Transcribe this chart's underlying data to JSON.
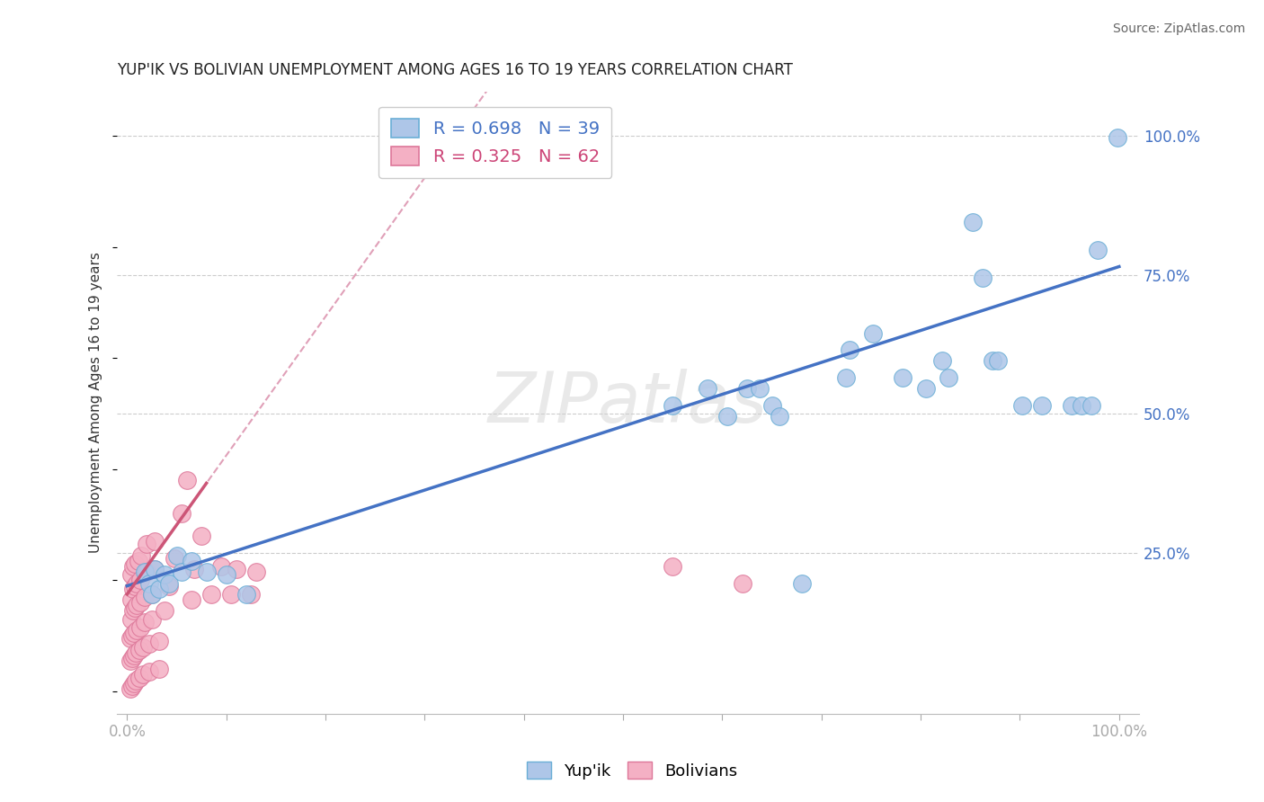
{
  "title": "YUP'IK VS BOLIVIAN UNEMPLOYMENT AMONG AGES 16 TO 19 YEARS CORRELATION CHART",
  "source": "Source: ZipAtlas.com",
  "ylabel": "Unemployment Among Ages 16 to 19 years",
  "xlim": [
    -0.01,
    1.02
  ],
  "ylim": [
    -0.04,
    1.08
  ],
  "xtick_positions": [
    0.0,
    0.1,
    0.2,
    0.3,
    0.4,
    0.5,
    0.6,
    0.7,
    0.8,
    0.9,
    1.0
  ],
  "xlabel_shown": [
    "0.0%",
    "",
    "",
    "",
    "",
    "",
    "",
    "",
    "",
    "",
    "100.0%"
  ],
  "ytick_positions": [
    0.25,
    0.5,
    0.75,
    1.0
  ],
  "ytick_labels": [
    "25.0%",
    "50.0%",
    "75.0%",
    "100.0%"
  ],
  "background_color": "#ffffff",
  "grid_color": "#cccccc",
  "watermark": "ZIPatlas",
  "yup_color": "#aec6e8",
  "yup_edge_color": "#6aaed6",
  "bolivian_color": "#f4b0c4",
  "bolivian_edge_color": "#dd7799",
  "trend_yup_color": "#4472c4",
  "trend_bolivian_solid_color": "#cc5577",
  "trend_bolivian_dash_color": "#e0a0b8",
  "yup_points": [
    [
      0.018,
      0.215
    ],
    [
      0.022,
      0.195
    ],
    [
      0.025,
      0.175
    ],
    [
      0.028,
      0.22
    ],
    [
      0.032,
      0.185
    ],
    [
      0.038,
      0.21
    ],
    [
      0.042,
      0.195
    ],
    [
      0.05,
      0.245
    ],
    [
      0.055,
      0.215
    ],
    [
      0.065,
      0.235
    ],
    [
      0.08,
      0.215
    ],
    [
      0.1,
      0.21
    ],
    [
      0.12,
      0.175
    ],
    [
      0.55,
      0.515
    ],
    [
      0.585,
      0.545
    ],
    [
      0.605,
      0.495
    ],
    [
      0.625,
      0.545
    ],
    [
      0.638,
      0.545
    ],
    [
      0.65,
      0.515
    ],
    [
      0.658,
      0.495
    ],
    [
      0.68,
      0.195
    ],
    [
      0.725,
      0.565
    ],
    [
      0.728,
      0.615
    ],
    [
      0.752,
      0.645
    ],
    [
      0.782,
      0.565
    ],
    [
      0.805,
      0.545
    ],
    [
      0.822,
      0.595
    ],
    [
      0.828,
      0.565
    ],
    [
      0.852,
      0.845
    ],
    [
      0.862,
      0.745
    ],
    [
      0.872,
      0.595
    ],
    [
      0.878,
      0.595
    ],
    [
      0.902,
      0.515
    ],
    [
      0.922,
      0.515
    ],
    [
      0.952,
      0.515
    ],
    [
      0.962,
      0.515
    ],
    [
      0.972,
      0.515
    ],
    [
      0.978,
      0.795
    ],
    [
      0.998,
      0.998
    ]
  ],
  "bolivian_points": [
    [
      0.003,
      0.005
    ],
    [
      0.003,
      0.055
    ],
    [
      0.003,
      0.095
    ],
    [
      0.004,
      0.13
    ],
    [
      0.004,
      0.165
    ],
    [
      0.004,
      0.21
    ],
    [
      0.005,
      0.01
    ],
    [
      0.005,
      0.06
    ],
    [
      0.005,
      0.1
    ],
    [
      0.006,
      0.145
    ],
    [
      0.006,
      0.185
    ],
    [
      0.006,
      0.225
    ],
    [
      0.007,
      0.015
    ],
    [
      0.007,
      0.065
    ],
    [
      0.007,
      0.105
    ],
    [
      0.008,
      0.15
    ],
    [
      0.008,
      0.19
    ],
    [
      0.008,
      0.23
    ],
    [
      0.009,
      0.02
    ],
    [
      0.009,
      0.07
    ],
    [
      0.01,
      0.11
    ],
    [
      0.01,
      0.155
    ],
    [
      0.01,
      0.195
    ],
    [
      0.011,
      0.235
    ],
    [
      0.012,
      0.025
    ],
    [
      0.012,
      0.075
    ],
    [
      0.013,
      0.115
    ],
    [
      0.013,
      0.16
    ],
    [
      0.013,
      0.2
    ],
    [
      0.014,
      0.245
    ],
    [
      0.016,
      0.03
    ],
    [
      0.016,
      0.08
    ],
    [
      0.018,
      0.125
    ],
    [
      0.018,
      0.17
    ],
    [
      0.02,
      0.215
    ],
    [
      0.02,
      0.265
    ],
    [
      0.022,
      0.035
    ],
    [
      0.022,
      0.085
    ],
    [
      0.025,
      0.13
    ],
    [
      0.025,
      0.175
    ],
    [
      0.028,
      0.22
    ],
    [
      0.028,
      0.27
    ],
    [
      0.032,
      0.04
    ],
    [
      0.032,
      0.09
    ],
    [
      0.038,
      0.145
    ],
    [
      0.042,
      0.19
    ],
    [
      0.048,
      0.24
    ],
    [
      0.055,
      0.32
    ],
    [
      0.06,
      0.38
    ],
    [
      0.065,
      0.165
    ],
    [
      0.068,
      0.22
    ],
    [
      0.075,
      0.28
    ],
    [
      0.085,
      0.175
    ],
    [
      0.095,
      0.225
    ],
    [
      0.105,
      0.175
    ],
    [
      0.11,
      0.22
    ],
    [
      0.125,
      0.175
    ],
    [
      0.13,
      0.215
    ],
    [
      0.55,
      0.225
    ],
    [
      0.62,
      0.195
    ]
  ],
  "bolivian_trend_start_x": 0.0,
  "bolivian_trend_end_solid_x": 0.08,
  "bolivian_trend_slope": 2.5,
  "bolivian_trend_intercept": 0.175,
  "yup_trend_start_x": 0.0,
  "yup_trend_end_x": 1.0,
  "yup_trend_slope": 0.575,
  "yup_trend_intercept": 0.19
}
